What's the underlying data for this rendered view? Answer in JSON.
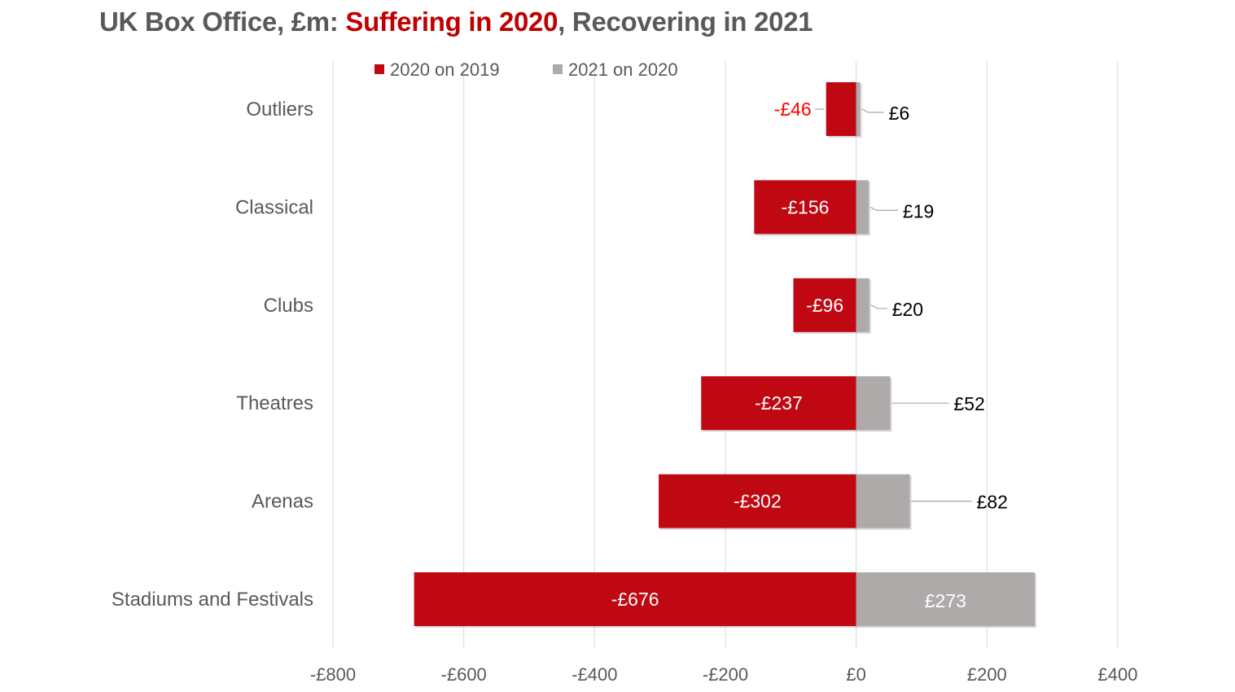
{
  "title": {
    "part1": "UK Box Office, £m: ",
    "part2": "Suffering in 2020",
    "part3": ", Recovering in 2021"
  },
  "colors": {
    "series_2020": "#c00812",
    "series_2021": "#aeaaa9",
    "highlight_title": "#c00000",
    "negative_outside_label": "#ff0000",
    "grid": "#d9d9d9",
    "text": "#595959"
  },
  "chart_data": {
    "type": "bar",
    "orientation": "horizontal",
    "stacked": "diverging",
    "categories": [
      "Outliers",
      "Classical",
      "Clubs",
      "Theatres",
      "Arenas",
      "Stadiums and Festivals"
    ],
    "series": [
      {
        "name": "2020 on 2019",
        "values": [
          -46,
          -156,
          -96,
          -237,
          -302,
          -676
        ],
        "labels": [
          "-£46",
          "-£156",
          "-£96",
          "-£237",
          "-£302",
          "-£676"
        ]
      },
      {
        "name": "2021 on 2020",
        "values": [
          6,
          19,
          20,
          52,
          82,
          273
        ],
        "labels": [
          "£6",
          "£19",
          "£20",
          "£52",
          "£82",
          "£273"
        ]
      }
    ],
    "xlim": [
      -800,
      400
    ],
    "xticks": [
      -800,
      -600,
      -400,
      -200,
      0,
      200,
      400
    ],
    "xtick_labels": [
      "-£800",
      "-£600",
      "-£400",
      "-£200",
      "£0",
      "£200",
      "£400"
    ],
    "grid": "vertical",
    "legend_position": "top"
  }
}
